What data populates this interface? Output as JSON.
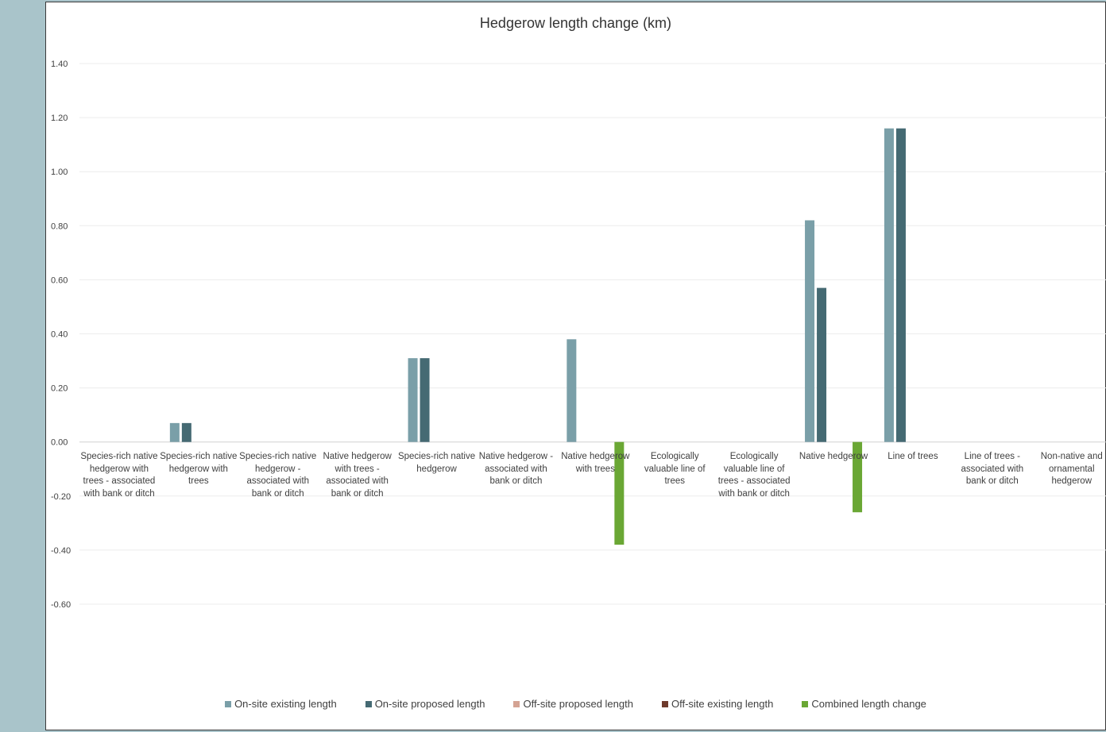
{
  "chart_data": {
    "type": "bar",
    "title": "Hedgerow length change (km)",
    "xlabel": "",
    "ylabel": "",
    "ylim": [
      -0.6,
      1.4
    ],
    "yticks": [
      "1.40",
      "1.20",
      "1.00",
      "0.80",
      "0.60",
      "0.40",
      "0.20",
      "0.00",
      "-0.20",
      "-0.40",
      "-0.60"
    ],
    "grid": true,
    "legend_position": "bottom",
    "categories": [
      "Species-rich native hedgerow with trees - associated with bank or ditch",
      "Species-rich native hedgerow with trees",
      "Species-rich native hedgerow - associated with bank or ditch",
      "Native hedgerow with trees - associated with bank or ditch",
      "Species-rich native hedgerow",
      "Native hedgerow - associated with bank or ditch",
      "Native hedgerow with trees",
      "Ecologically valuable line of trees",
      "Ecologically valuable line of trees - associated with bank or ditch",
      "Native hedgerow",
      "Line of trees",
      "Line of trees - associated with bank or ditch",
      "Non-native and ornamental hedgerow"
    ],
    "series": [
      {
        "name": "On-site existing length",
        "color": "#7a9fa8",
        "values": [
          0,
          0.07,
          0,
          0,
          0.31,
          0,
          0.38,
          0,
          0,
          0.82,
          1.16,
          0,
          0
        ]
      },
      {
        "name": "On-site proposed length",
        "color": "#456a73",
        "values": [
          0,
          0.07,
          0,
          0,
          0.31,
          0,
          0,
          0,
          0,
          0.57,
          1.16,
          0,
          0
        ]
      },
      {
        "name": "Off-site proposed length",
        "color": "#d4a393",
        "values": [
          0,
          0,
          0,
          0,
          0,
          0,
          0,
          0,
          0,
          0,
          0,
          0,
          0
        ]
      },
      {
        "name": "Off-site existing length",
        "color": "#6e3a2c",
        "values": [
          0,
          0,
          0,
          0,
          0,
          0,
          0,
          0,
          0,
          0,
          0,
          0,
          0
        ]
      },
      {
        "name": "Combined length change",
        "color": "#6aa734",
        "values": [
          0,
          0,
          0,
          0,
          0,
          0,
          -0.38,
          0,
          0,
          -0.26,
          0,
          0,
          0
        ]
      }
    ]
  }
}
